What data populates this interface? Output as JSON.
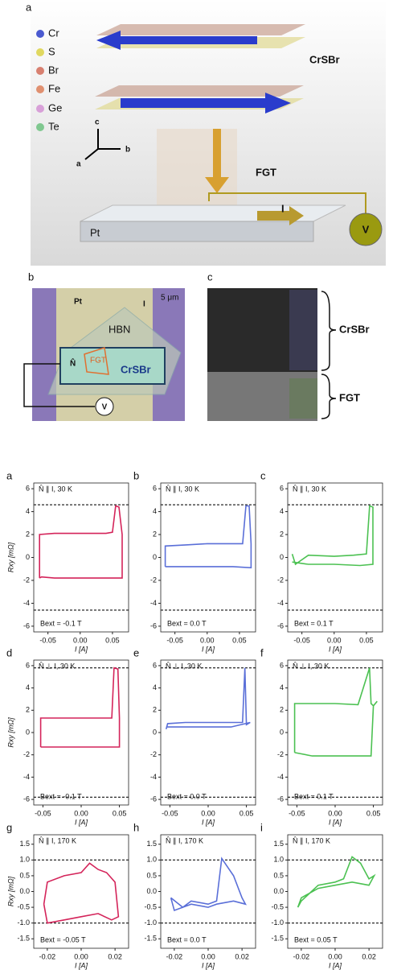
{
  "figure": {
    "panel_a": {
      "label": "a",
      "legend": [
        "Cr",
        "S",
        "Br",
        "Fe",
        "Ge",
        "Te"
      ],
      "crsbr": "CrSBr",
      "fgt": "FGT",
      "axes": [
        "c",
        "b",
        "a"
      ],
      "pt": "Pt",
      "current": "I",
      "voltage": "V"
    },
    "panel_b": {
      "label": "b",
      "pt": "Pt",
      "current": "I",
      "scale": "5 μm",
      "hbn": "HBN",
      "fgt": "FGT",
      "n": "N̂",
      "crsbr": "CrSBr",
      "voltage": "V"
    },
    "panel_c": {
      "label": "c",
      "crsbr": "CrSBr",
      "fgt": "FGT"
    }
  },
  "chart_data": [
    {
      "type": "line",
      "label": "a",
      "annotation": "N̂ ∥ I, 30 K",
      "field": "Bext = -0.1 T",
      "ylabel": "Rxy [mΩ]",
      "xlabel": "I [A]",
      "xlim": [
        -0.072,
        0.075
      ],
      "ylim": [
        -6.5,
        6.5
      ],
      "xticks": [
        -0.05,
        {
          "value": 0,
          "label": "0.00"
        },
        0.05
      ],
      "yticks": [
        -6,
        -4,
        -2,
        0,
        2,
        4,
        6
      ],
      "hlines": [
        4.6,
        -4.6
      ],
      "x": [
        -0.063,
        -0.063,
        -0.04,
        0,
        0.04,
        0.05,
        0.055,
        0.06,
        0.065,
        0.065,
        0.06,
        0.04,
        0,
        -0.04,
        -0.06,
        -0.063
      ],
      "series": [
        {
          "color": "#d4245a",
          "values": [
            -1.8,
            2.0,
            2.1,
            2.1,
            2.1,
            2.2,
            4.5,
            4.4,
            2.0,
            -1.8,
            -1.8,
            -1.8,
            -1.8,
            -1.8,
            -1.7,
            -1.8
          ]
        }
      ]
    },
    {
      "type": "line",
      "label": "b",
      "annotation": "N̂ ∥ I, 30 K",
      "field": "Bext = 0.0 T",
      "xlabel": "I [A]",
      "xlim": [
        -0.072,
        0.075
      ],
      "ylim": [
        -6.5,
        6.5
      ],
      "xticks": [
        -0.05,
        {
          "value": 0,
          "label": "0.00"
        },
        0.05
      ],
      "yticks": [
        -6,
        -4,
        -2,
        0,
        2,
        4,
        6
      ],
      "hlines": [
        4.6,
        -4.6
      ],
      "x": [
        -0.065,
        -0.065,
        -0.03,
        0,
        0.03,
        0.055,
        0.06,
        0.065,
        0.068,
        0.068,
        0.04,
        0,
        -0.04,
        -0.065
      ],
      "series": [
        {
          "color": "#5a6fd8",
          "values": [
            -0.8,
            1.0,
            1.1,
            1.2,
            1.2,
            1.2,
            4.5,
            4.5,
            1.2,
            -0.9,
            -0.8,
            -0.8,
            -0.8,
            -0.8
          ]
        }
      ]
    },
    {
      "type": "line",
      "label": "c",
      "annotation": "N̂ ∥ I, 30 K",
      "field": "Bext = 0.1 T",
      "xlabel": "I [A]",
      "xlim": [
        -0.072,
        0.075
      ],
      "ylim": [
        -6.5,
        6.5
      ],
      "xticks": [
        -0.05,
        {
          "value": 0,
          "label": "0.00"
        },
        0.05
      ],
      "yticks": [
        -6,
        -4,
        -2,
        0,
        2,
        4,
        6
      ],
      "hlines": [
        4.6,
        -4.6
      ],
      "x": [
        -0.065,
        -0.06,
        -0.04,
        0,
        0.03,
        0.05,
        0.055,
        0.06,
        0.06,
        0.04,
        0,
        -0.04,
        -0.065
      ],
      "series": [
        {
          "color": "#4cc152",
          "values": [
            0.3,
            -0.6,
            0.2,
            0.1,
            0.2,
            0.3,
            4.5,
            4.4,
            -0.6,
            -0.7,
            -0.6,
            -0.6,
            -0.4
          ]
        }
      ]
    },
    {
      "type": "line",
      "label": "d",
      "annotation": "N̂ ⊥ I, 30 K",
      "field": "Bext = -0.1 T",
      "ylabel": "Rxy [mΩ]",
      "xlabel": "I [A]",
      "xlim": [
        -0.062,
        0.062
      ],
      "ylim": [
        -6.5,
        6.5
      ],
      "xticks": [
        -0.05,
        {
          "value": 0,
          "label": "0.00"
        },
        0.05
      ],
      "yticks": [
        -6,
        -4,
        -2,
        0,
        2,
        4,
        6
      ],
      "hlines": [
        5.8,
        -5.8
      ],
      "x": [
        -0.053,
        -0.053,
        -0.03,
        0,
        0.03,
        0.04,
        0.043,
        0.048,
        0.05,
        0.05,
        0.03,
        0,
        -0.03,
        -0.053
      ],
      "series": [
        {
          "color": "#d4245a",
          "values": [
            -1.3,
            1.3,
            1.3,
            1.3,
            1.3,
            1.3,
            5.8,
            5.7,
            1.3,
            -1.3,
            -1.3,
            -1.3,
            -1.3,
            -1.3
          ]
        }
      ]
    },
    {
      "type": "line",
      "label": "e",
      "annotation": "N̂ ⊥ I, 30 K",
      "field": "Bext = 0.0 T",
      "xlabel": "I [A]",
      "xlim": [
        -0.062,
        0.062
      ],
      "ylim": [
        -6.5,
        6.5
      ],
      "xticks": [
        -0.05,
        {
          "value": 0,
          "label": "0.00"
        },
        0.05
      ],
      "yticks": [
        -6,
        -4,
        -2,
        0,
        2,
        4,
        6
      ],
      "hlines": [
        5.8,
        -5.8
      ],
      "x": [
        -0.055,
        -0.053,
        -0.03,
        0,
        0.03,
        0.045,
        0.048,
        0.05,
        0.055,
        0.03,
        0,
        -0.03,
        -0.055
      ],
      "series": [
        {
          "color": "#5a6fd8",
          "values": [
            0.3,
            0.8,
            0.9,
            0.9,
            0.9,
            0.9,
            5.8,
            0.7,
            0.9,
            0.5,
            0.5,
            0.5,
            0.5
          ]
        }
      ]
    },
    {
      "type": "line",
      "label": "f",
      "annotation": "N̂ ⊥ I, 30 K",
      "field": "Bext = 0.1 T",
      "xlabel": "I [A]",
      "xlim": [
        -0.062,
        0.062
      ],
      "ylim": [
        -6.5,
        6.5
      ],
      "xticks": [
        -0.05,
        {
          "value": 0,
          "label": "0.00"
        },
        0.05
      ],
      "yticks": [
        -6,
        -4,
        -2,
        0,
        2,
        4,
        6
      ],
      "hlines": [
        5.8,
        -5.8
      ],
      "x": [
        -0.053,
        -0.053,
        -0.03,
        0,
        0.03,
        0.045,
        0.047,
        0.05,
        0.055,
        0.05,
        0.047,
        0.03,
        0,
        -0.03,
        -0.053
      ],
      "series": [
        {
          "color": "#4cc152",
          "values": [
            -1.8,
            2.6,
            2.6,
            2.6,
            2.5,
            5.8,
            2.6,
            2.4,
            2.8,
            2.4,
            -2.1,
            -2.1,
            -2.1,
            -2.1,
            -1.8
          ]
        }
      ]
    },
    {
      "type": "line",
      "label": "g",
      "annotation": "N̂ ∥ I, 170 K",
      "field": "Bext = -0.05 T",
      "ylabel": "Rxy [mΩ]",
      "xlabel": "I [A]",
      "xlim": [
        -0.028,
        0.028
      ],
      "ylim": [
        -1.8,
        1.8
      ],
      "xticks": [
        -0.02,
        {
          "value": 0,
          "label": "0.00"
        },
        0.02
      ],
      "yticks": [
        -1.5,
        {
          "value": -1,
          "label": "-1.0"
        },
        -0.5,
        {
          "value": 0,
          "label": "0.0"
        },
        0.5,
        {
          "value": 1,
          "label": "1.0"
        },
        1.5
      ],
      "hlines": [
        1.0,
        -1.0
      ],
      "x": [
        -0.022,
        -0.02,
        -0.01,
        0,
        0.005,
        0.01,
        0.015,
        0.02,
        0.022,
        0.018,
        0.01,
        0,
        -0.01,
        -0.02,
        -0.022
      ],
      "series": [
        {
          "color": "#d4245a",
          "values": [
            -0.4,
            0.3,
            0.5,
            0.6,
            0.9,
            0.7,
            0.6,
            0.3,
            -0.8,
            -0.9,
            -0.7,
            -0.8,
            -0.9,
            -1.0,
            -0.4
          ]
        }
      ]
    },
    {
      "type": "line",
      "label": "h",
      "annotation": "N̂ ∥ I, 170 K",
      "field": "Bext = 0.0 T",
      "xlabel": "I [A]",
      "xlim": [
        -0.028,
        0.028
      ],
      "ylim": [
        -1.8,
        1.8
      ],
      "xticks": [
        -0.02,
        {
          "value": 0,
          "label": "0.00"
        },
        0.02
      ],
      "yticks": [
        -1.5,
        {
          "value": -1,
          "label": "-1.0"
        },
        -0.5,
        {
          "value": 0,
          "label": "0.0"
        },
        0.5,
        {
          "value": 1,
          "label": "1.0"
        },
        1.5
      ],
      "hlines": [
        1.0,
        -1.0
      ],
      "x": [
        -0.022,
        -0.015,
        -0.01,
        0,
        0.005,
        0.008,
        0.015,
        0.02,
        0.022,
        0.015,
        0.005,
        0,
        -0.01,
        -0.02,
        -0.022
      ],
      "series": [
        {
          "color": "#5a6fd8",
          "values": [
            -0.2,
            -0.5,
            -0.3,
            -0.4,
            -0.3,
            1.05,
            0.5,
            -0.2,
            -0.4,
            -0.3,
            -0.4,
            -0.5,
            -0.4,
            -0.6,
            -0.2
          ]
        }
      ]
    },
    {
      "type": "line",
      "label": "i",
      "annotation": "N̂ ∥ I, 170 K",
      "field": "Bext = 0.05 T",
      "xlabel": "I [A]",
      "xlim": [
        -0.028,
        0.028
      ],
      "ylim": [
        -1.8,
        1.8
      ],
      "xticks": [
        -0.02,
        {
          "value": 0,
          "label": "0.00"
        },
        0.02
      ],
      "yticks": [
        -1.5,
        {
          "value": -1,
          "label": "-1.0"
        },
        -0.5,
        {
          "value": 0,
          "label": "0.0"
        },
        0.5,
        {
          "value": 1,
          "label": "1.0"
        },
        1.5
      ],
      "hlines": [
        1.0,
        -1.0
      ],
      "x": [
        -0.022,
        -0.02,
        -0.01,
        0,
        0.005,
        0.01,
        0.015,
        0.02,
        0.023,
        0.02,
        0.01,
        0,
        -0.01,
        -0.02,
        -0.022
      ],
      "series": [
        {
          "color": "#4cc152",
          "values": [
            -0.5,
            -0.3,
            0.2,
            0.3,
            0.4,
            1.1,
            0.9,
            0.4,
            0.5,
            0.2,
            0.3,
            0.2,
            0.1,
            -0.2,
            -0.5
          ]
        }
      ]
    }
  ]
}
